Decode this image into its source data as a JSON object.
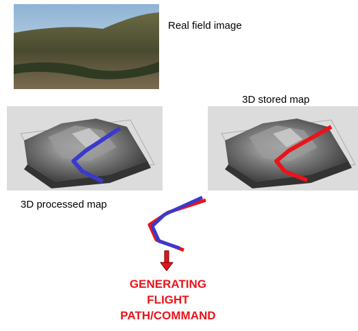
{
  "labels": {
    "real_image": "Real field image",
    "stored_map": "3D stored map",
    "processed_map": "3D processed map"
  },
  "output": {
    "lines": [
      "GENERATING",
      "FLIGHT",
      "PATH/COMMAND"
    ]
  }
}
